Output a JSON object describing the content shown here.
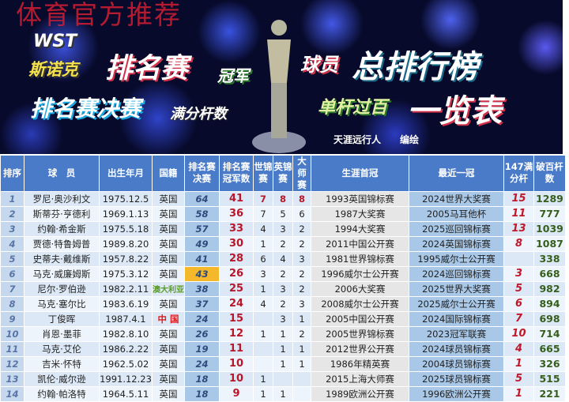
{
  "banner": {
    "watermark": "体育官方推荐",
    "logo": "WST",
    "line1a": "斯诺克",
    "line1b": "排名赛",
    "line1c": "冠军",
    "line2a": "排名赛决赛",
    "line2b": "满分杆数",
    "line3a": "球员",
    "line3b": "总排行榜",
    "line4a": "单杆过百",
    "line4b": "一览表",
    "credit": "天涯远行人　　编绘"
  },
  "table": {
    "headers": [
      "排序",
      "球　员",
      "出生年月",
      "国籍",
      "排名赛决赛",
      "排名赛冠军数",
      "世锦赛",
      "英锦赛",
      "大师赛",
      "生涯首冠",
      "最近一冠",
      "147满分杆",
      "破百杆数"
    ],
    "rows": [
      {
        "rank": "1",
        "name": "罗尼·奥沙利文",
        "born": "1975.12.5",
        "nat": "英国",
        "finals": "64",
        "titles": "41",
        "wc": "7",
        "uk": "8",
        "masters": "8",
        "first": "1993英国锦标赛",
        "last": "2024世界大奖赛",
        "max": "15",
        "cent": "1289"
      },
      {
        "rank": "2",
        "name": "斯蒂芬·亨德利",
        "born": "1969.1.13",
        "nat": "英国",
        "finals": "58",
        "titles": "36",
        "wc": "7",
        "uk": "5",
        "masters": "6",
        "first": "1987大奖赛",
        "last": "2005马耳他杯",
        "max": "11",
        "cent": "777"
      },
      {
        "rank": "3",
        "name": "约翰·希金斯",
        "born": "1975.5.18",
        "nat": "英国",
        "finals": "57",
        "titles": "33",
        "wc": "4",
        "uk": "3",
        "masters": "2",
        "first": "1994大奖赛",
        "last": "2025巡回锦标赛",
        "max": "13",
        "cent": "1039"
      },
      {
        "rank": "4",
        "name": "贾德·特鲁姆普",
        "born": "1989.8.20",
        "nat": "英国",
        "finals": "49",
        "titles": "30",
        "wc": "1",
        "uk": "2",
        "masters": "2",
        "first": "2011中国公开赛",
        "last": "2024英国锦标赛",
        "max": "8",
        "cent": "1087"
      },
      {
        "rank": "5",
        "name": "史蒂夫·戴维斯",
        "born": "1957.8.22",
        "nat": "英国",
        "finals": "41",
        "titles": "28",
        "wc": "6",
        "uk": "4",
        "masters": "3",
        "first": "1981世界锦标赛",
        "last": "1995威尔士公开赛",
        "max": "",
        "cent": "338"
      },
      {
        "rank": "6",
        "name": "马克·威廉姆斯",
        "born": "1975.3.12",
        "nat": "英国",
        "finals": "43",
        "titles": "26",
        "wc": "3",
        "uk": "2",
        "masters": "2",
        "first": "1996威尔士公开赛",
        "last": "2024巡回锦标赛",
        "max": "3",
        "cent": "668"
      },
      {
        "rank": "7",
        "name": "尼尔·罗伯逊",
        "born": "1982.2.11",
        "nat": "澳大利亚",
        "finals": "38",
        "titles": "25",
        "wc": "1",
        "uk": "3",
        "masters": "2",
        "first": "2006大奖赛",
        "last": "2025世界大奖赛",
        "max": "5",
        "cent": "982"
      },
      {
        "rank": "8",
        "name": "马克·塞尔比",
        "born": "1983.6.19",
        "nat": "英国",
        "finals": "37",
        "titles": "24",
        "wc": "4",
        "uk": "2",
        "masters": "3",
        "first": "2008威尔士公开赛",
        "last": "2025威尔士公开赛",
        "max": "6",
        "cent": "894"
      },
      {
        "rank": "9",
        "name": "丁俊晖",
        "born": "1987.4.1",
        "nat": "中 国",
        "finals": "24",
        "titles": "15",
        "wc": "",
        "uk": "3",
        "masters": "1",
        "first": "2005中国公开赛",
        "last": "2024国际锦标赛",
        "max": "7",
        "cent": "698"
      },
      {
        "rank": "10",
        "name": "肖恩·墨菲",
        "born": "1982.8.10",
        "nat": "英国",
        "finals": "26",
        "titles": "12",
        "wc": "1",
        "uk": "1",
        "masters": "2",
        "first": "2005世界锦标赛",
        "last": "2023冠军联赛",
        "max": "10",
        "cent": "714"
      },
      {
        "rank": "11",
        "name": "马克·艾伦",
        "born": "1986.2.22",
        "nat": "英国",
        "finals": "19",
        "titles": "11",
        "wc": "",
        "uk": "1",
        "masters": "1",
        "first": "2012世界公开赛",
        "last": "2024球员锦标赛",
        "max": "4",
        "cent": "665"
      },
      {
        "rank": "12",
        "name": "吉米·怀特",
        "born": "1962.5.02",
        "nat": "英国",
        "finals": "24",
        "titles": "10",
        "wc": "",
        "uk": "1",
        "masters": "1",
        "first": "1986年精英赛",
        "last": "2004球员锦标赛",
        "max": "1",
        "cent": "326"
      },
      {
        "rank": "13",
        "name": "凯伦·威尔逊",
        "born": "1991.12.23",
        "nat": "英国",
        "finals": "18",
        "titles": "10",
        "wc": "1",
        "uk": "",
        "masters": "",
        "first": "2015上海大师赛",
        "last": "2025球员锦标赛",
        "max": "5",
        "cent": "515"
      },
      {
        "rank": "14",
        "name": "约翰·帕洛特",
        "born": "1964.5.11",
        "nat": "英国",
        "finals": "18",
        "titles": "9",
        "wc": "1",
        "uk": "1",
        "masters": "",
        "first": "1989欧洲公开赛",
        "last": "1996欧洲公开赛",
        "max": "1",
        "cent": "221"
      }
    ]
  }
}
